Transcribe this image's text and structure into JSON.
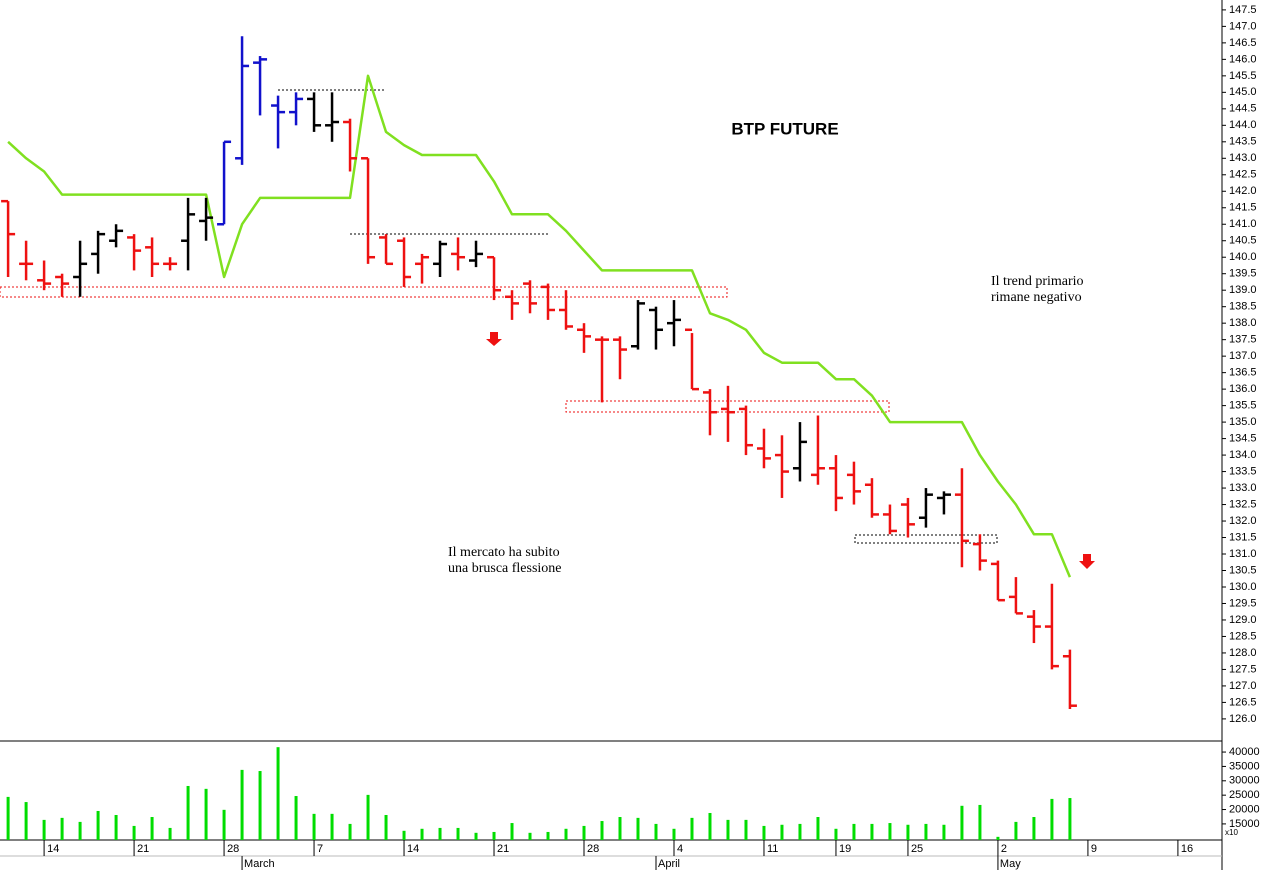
{
  "chart_data": [
    {
      "type": "ohlc",
      "title": "BTP FUTURE",
      "annotations": [
        {
          "lines": [
            "Il trend primario",
            "rimane negativo"
          ],
          "color": "#ee1111"
        },
        {
          "lines": [
            "Il mercato ha subito",
            "una brusca flessione"
          ],
          "color": "#ee1111"
        }
      ],
      "open": [
        141.7,
        139.8,
        139.3,
        139.4,
        139.4,
        140.1,
        140.5,
        140.6,
        140.3,
        139.8,
        140.5,
        141.1,
        141.0,
        143.0,
        145.9,
        144.6,
        144.4,
        144.8,
        144.0,
        144.1,
        143.0,
        140.6,
        140.5,
        139.8,
        139.8,
        140.1,
        139.9,
        140.0,
        138.8,
        139.2,
        139.1,
        138.4,
        137.8,
        137.5,
        137.5,
        137.3,
        138.4,
        138.0,
        137.8,
        135.9,
        135.4,
        135.4,
        134.2,
        134.0,
        133.6,
        133.4,
        133.6,
        133.4,
        133.1,
        132.2,
        132.5,
        132.1,
        132.7,
        132.8,
        131.3,
        130.7,
        129.7,
        129.1,
        128.8,
        127.9
      ],
      "high": [
        141.7,
        140.5,
        139.9,
        139.5,
        140.5,
        140.8,
        141.0,
        140.7,
        140.6,
        140.0,
        141.8,
        141.8,
        143.5,
        146.7,
        146.1,
        144.9,
        145.0,
        145.0,
        145.0,
        144.2,
        143.0,
        140.7,
        140.6,
        140.1,
        140.5,
        140.6,
        140.5,
        140.0,
        139.0,
        139.3,
        139.2,
        139.0,
        138.0,
        137.6,
        137.6,
        138.7,
        138.5,
        138.7,
        137.7,
        136.0,
        136.1,
        135.5,
        134.8,
        134.6,
        135.0,
        135.2,
        134.0,
        133.8,
        133.3,
        132.5,
        132.7,
        133.0,
        132.9,
        133.6,
        131.6,
        130.8,
        130.3,
        129.3,
        130.1,
        128.1
      ],
      "low": [
        139.4,
        139.3,
        139.0,
        138.8,
        138.8,
        139.5,
        140.3,
        139.6,
        139.4,
        139.6,
        139.6,
        140.5,
        141.0,
        142.8,
        144.3,
        143.3,
        144.0,
        143.8,
        143.5,
        142.6,
        139.8,
        139.8,
        139.1,
        139.2,
        139.4,
        139.6,
        139.7,
        138.7,
        138.1,
        138.3,
        138.1,
        137.8,
        137.1,
        135.6,
        136.3,
        137.2,
        137.2,
        137.3,
        136.0,
        134.6,
        134.4,
        134.0,
        133.6,
        132.7,
        133.2,
        133.1,
        132.3,
        132.5,
        132.1,
        131.6,
        131.5,
        131.8,
        132.2,
        130.6,
        130.5,
        129.6,
        129.2,
        128.3,
        127.5,
        126.3
      ],
      "close": [
        140.7,
        139.8,
        139.2,
        139.2,
        139.8,
        140.7,
        140.8,
        140.2,
        139.8,
        139.8,
        141.3,
        141.2,
        143.5,
        145.8,
        146.0,
        144.4,
        144.8,
        144.0,
        144.1,
        143.0,
        140.0,
        139.8,
        139.4,
        140.0,
        140.4,
        140.0,
        140.1,
        139.0,
        138.6,
        138.6,
        138.4,
        137.9,
        137.6,
        137.5,
        137.2,
        138.6,
        137.8,
        138.1,
        136.0,
        135.3,
        135.3,
        134.3,
        133.9,
        133.5,
        134.4,
        133.6,
        132.7,
        132.9,
        132.2,
        131.7,
        131.9,
        132.8,
        132.8,
        131.4,
        130.8,
        129.6,
        129.2,
        128.8,
        127.6,
        126.4
      ],
      "colors": [
        "#ee1111",
        "#ee1111",
        "#ee1111",
        "#ee1111",
        "#000000",
        "#000000",
        "#000000",
        "#ee1111",
        "#ee1111",
        "#ee1111",
        "#000000",
        "#000000",
        "#1111cc",
        "#1111cc",
        "#1111cc",
        "#1111cc",
        "#1111cc",
        "#000000",
        "#000000",
        "#ee1111",
        "#ee1111",
        "#ee1111",
        "#ee1111",
        "#ee1111",
        "#000000",
        "#ee1111",
        "#000000",
        "#ee1111",
        "#ee1111",
        "#ee1111",
        "#ee1111",
        "#ee1111",
        "#ee1111",
        "#ee1111",
        "#ee1111",
        "#000000",
        "#000000",
        "#000000",
        "#ee1111",
        "#ee1111",
        "#ee1111",
        "#ee1111",
        "#ee1111",
        "#ee1111",
        "#000000",
        "#ee1111",
        "#ee1111",
        "#ee1111",
        "#ee1111",
        "#ee1111",
        "#ee1111",
        "#000000",
        "#000000",
        "#ee1111",
        "#ee1111",
        "#ee1111",
        "#ee1111",
        "#ee1111",
        "#ee1111",
        "#ee1111"
      ],
      "line": {
        "color": "#80e020",
        "values": [
          143.5,
          143.0,
          142.6,
          141.9,
          141.9,
          141.9,
          141.9,
          141.9,
          141.9,
          141.9,
          141.9,
          141.9,
          139.4,
          141.0,
          141.8,
          141.8,
          141.8,
          141.8,
          141.8,
          141.8,
          145.5,
          143.8,
          143.4,
          143.1,
          143.1,
          143.1,
          143.1,
          142.3,
          141.3,
          141.3,
          141.3,
          140.8,
          140.2,
          139.6,
          139.6,
          139.6,
          139.6,
          139.6,
          139.6,
          138.3,
          138.1,
          137.8,
          137.1,
          136.8,
          136.8,
          136.8,
          136.3,
          136.3,
          135.8,
          135.0,
          135.0,
          135.0,
          135.0,
          135.0,
          134.0,
          133.2,
          132.5,
          131.6,
          131.6,
          130.3
        ]
      },
      "ylim": [
        125.36,
        147.8
      ],
      "yticks": [
        {
          "value": 126,
          "label": "126.0"
        },
        {
          "value": 126.5,
          "label": "126.5"
        },
        {
          "value": 127,
          "label": "127.0"
        },
        {
          "value": 127.5,
          "label": "127.5"
        },
        {
          "value": 128,
          "label": "128.0"
        },
        {
          "value": 128.5,
          "label": "128.5"
        },
        {
          "value": 129,
          "label": "129.0"
        },
        {
          "value": 129.5,
          "label": "129.5"
        },
        {
          "value": 130,
          "label": "130.0"
        },
        {
          "value": 130.5,
          "label": "130.5"
        },
        {
          "value": 131,
          "label": "131.0"
        },
        {
          "value": 131.5,
          "label": "131.5"
        },
        {
          "value": 132,
          "label": "132.0"
        },
        {
          "value": 132.5,
          "label": "132.5"
        },
        {
          "value": 133,
          "label": "133.0"
        },
        {
          "value": 133.5,
          "label": "133.5"
        },
        {
          "value": 134,
          "label": "134.0"
        },
        {
          "value": 134.5,
          "label": "134.5"
        },
        {
          "value": 135,
          "label": "135.0"
        },
        {
          "value": 135.5,
          "label": "135.5"
        },
        {
          "value": 136,
          "label": "136.0"
        },
        {
          "value": 136.5,
          "label": "136.5"
        },
        {
          "value": 137,
          "label": "137.0"
        },
        {
          "value": 137.5,
          "label": "137.5"
        },
        {
          "value": 138,
          "label": "138.0"
        },
        {
          "value": 138.5,
          "label": "138.5"
        },
        {
          "value": 139,
          "label": "139.0"
        },
        {
          "value": 139.5,
          "label": "139.5"
        },
        {
          "value": 140,
          "label": "140.0"
        },
        {
          "value": 140.5,
          "label": "140.5"
        },
        {
          "value": 141,
          "label": "141.0"
        },
        {
          "value": 141.5,
          "label": "141.5"
        },
        {
          "value": 142,
          "label": "142.0"
        },
        {
          "value": 142.5,
          "label": "142.5"
        },
        {
          "value": 143,
          "label": "143.0"
        },
        {
          "value": 143.5,
          "label": "143.5"
        },
        {
          "value": 144,
          "label": "144.0"
        },
        {
          "value": 144.5,
          "label": "144.5"
        },
        {
          "value": 145,
          "label": "145.0"
        },
        {
          "value": 145.5,
          "label": "145.5"
        },
        {
          "value": 146,
          "label": "146.0"
        },
        {
          "value": 146.5,
          "label": "146.5"
        },
        {
          "value": 147,
          "label": "147.0"
        },
        {
          "value": 147.5,
          "label": "147.5"
        }
      ]
    },
    {
      "type": "bar",
      "color": "#00dd00",
      "values": [
        24400,
        22600,
        16400,
        17100,
        15700,
        19500,
        18100,
        14300,
        17400,
        13600,
        28200,
        27200,
        19900,
        33800,
        33400,
        41700,
        24700,
        18500,
        18500,
        15000,
        25100,
        18100,
        12600,
        13300,
        13600,
        13600,
        11900,
        12200,
        15300,
        11900,
        12200,
        13300,
        14300,
        16000,
        17400,
        17100,
        15000,
        13300,
        17100,
        18800,
        16400,
        16400,
        14300,
        14700,
        15000,
        17400,
        13300,
        15000,
        15000,
        15300,
        14700,
        15000,
        14700,
        21300,
        21600,
        10500,
        15700,
        17400,
        23700,
        24000
      ],
      "ylim": [
        9400,
        43500
      ],
      "yticks": [
        15000,
        20000,
        25000,
        30000,
        35000,
        40000
      ],
      "y_unit_label": "x10",
      "xlim": [
        -0.45,
        67.45
      ],
      "xticks": [
        {
          "value": 2,
          "label": "14"
        },
        {
          "value": 7,
          "label": "21"
        },
        {
          "value": 12,
          "label": "28"
        },
        {
          "value": 17,
          "label": "7"
        },
        {
          "value": 22,
          "label": "14"
        },
        {
          "value": 27,
          "label": "21"
        },
        {
          "value": 32,
          "label": "28"
        },
        {
          "value": 37,
          "label": "4"
        },
        {
          "value": 42,
          "label": "11"
        },
        {
          "value": 46,
          "label": "19"
        },
        {
          "value": 50,
          "label": "25"
        },
        {
          "value": 55,
          "label": "2"
        },
        {
          "value": 60,
          "label": "9"
        },
        {
          "value": 65,
          "label": "16"
        }
      ],
      "months": [
        {
          "value": 13,
          "label": "March"
        },
        {
          "value": 36,
          "label": "April"
        },
        {
          "value": 55,
          "label": "May"
        }
      ]
    }
  ]
}
